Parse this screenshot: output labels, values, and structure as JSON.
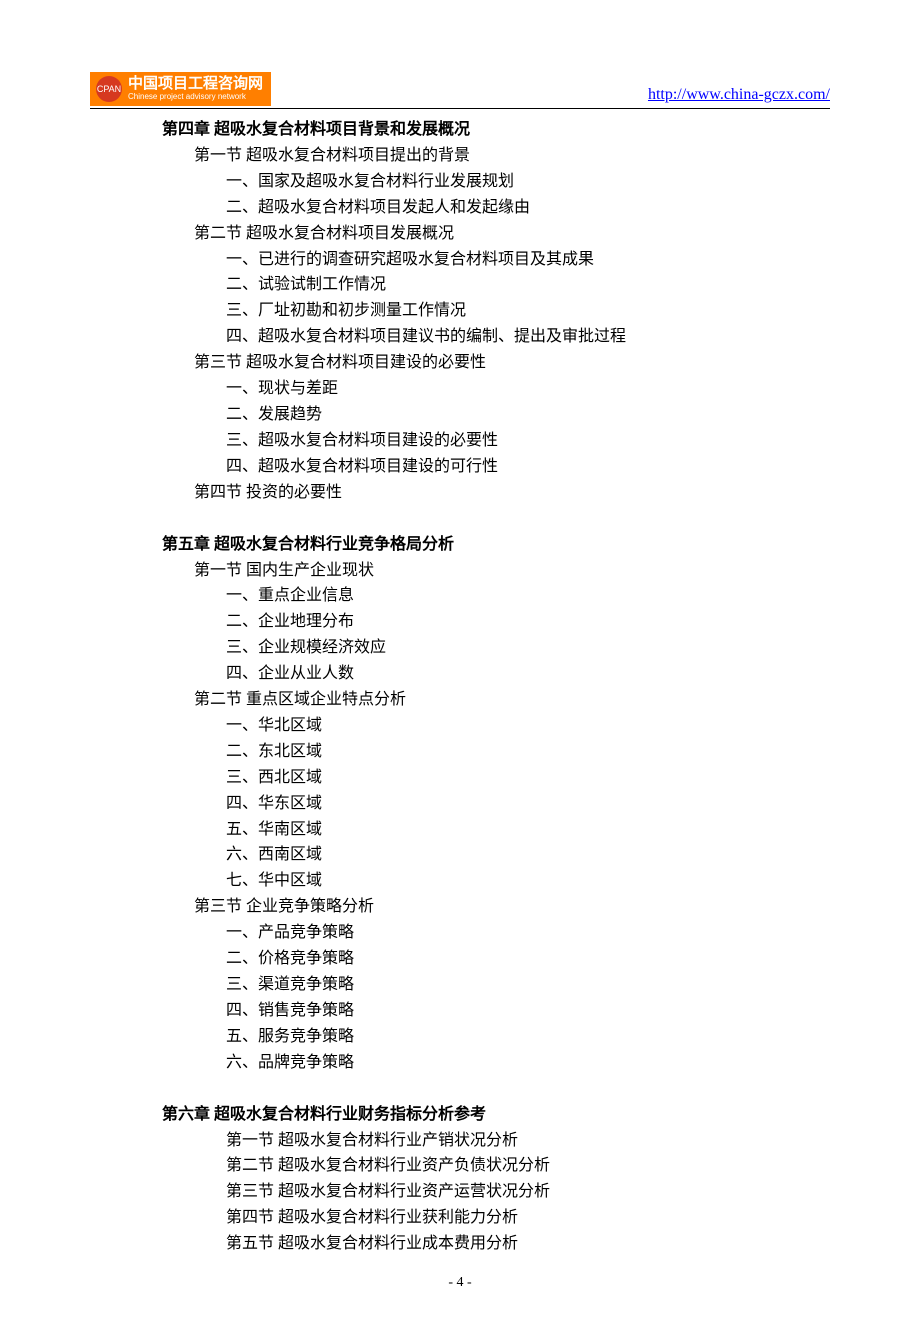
{
  "header": {
    "logo_cn": "中国项目工程咨询网",
    "logo_en": "Chinese project advisory network",
    "logo_badge": "CPAN",
    "url": "http://www.china-gczx.com/"
  },
  "chapter4": {
    "title": "第四章 超吸水复合材料项目背景和发展概况",
    "section1": {
      "title": "第一节 超吸水复合材料项目提出的背景",
      "items": [
        "一、国家及超吸水复合材料行业发展规划",
        "二、超吸水复合材料项目发起人和发起缘由"
      ]
    },
    "section2": {
      "title": "第二节 超吸水复合材料项目发展概况",
      "items": [
        "一、已进行的调查研究超吸水复合材料项目及其成果",
        "二、试验试制工作情况",
        "三、厂址初勘和初步测量工作情况",
        "四、超吸水复合材料项目建议书的编制、提出及审批过程"
      ]
    },
    "section3": {
      "title": "第三节 超吸水复合材料项目建设的必要性",
      "items": [
        "一、现状与差距",
        "二、发展趋势",
        "三、超吸水复合材料项目建设的必要性",
        "四、超吸水复合材料项目建设的可行性"
      ]
    },
    "section4": {
      "title": "第四节  投资的必要性"
    }
  },
  "chapter5": {
    "title": "第五章 超吸水复合材料行业竞争格局分析",
    "section1": {
      "title": "第一节  国内生产企业现状",
      "items": [
        "一、重点企业信息",
        "二、企业地理分布",
        "三、企业规模经济效应",
        "四、企业从业人数"
      ]
    },
    "section2": {
      "title": "第二节  重点区域企业特点分析",
      "items": [
        "一、华北区域",
        "二、东北区域",
        "三、西北区域",
        "四、华东区域",
        "五、华南区域",
        "六、西南区域",
        "七、华中区域"
      ]
    },
    "section3": {
      "title": "第三节  企业竞争策略分析",
      "items": [
        "一、产品竞争策略",
        "二、价格竞争策略",
        "三、渠道竞争策略",
        "四、销售竞争策略",
        "五、服务竞争策略",
        "六、品牌竞争策略"
      ]
    }
  },
  "chapter6": {
    "title": "第六章 超吸水复合材料行业财务指标分析参考",
    "sections": [
      "第一节 超吸水复合材料行业产销状况分析",
      "第二节 超吸水复合材料行业资产负债状况分析",
      "第三节 超吸水复合材料行业资产运营状况分析",
      "第四节 超吸水复合材料行业获利能力分析",
      "第五节 超吸水复合材料行业成本费用分析"
    ]
  },
  "page_number": "- 4 -",
  "colors": {
    "logo_bg": "#ff7f00",
    "logo_circle": "#d63920",
    "link": "#0000ff",
    "text": "#000000",
    "background": "#ffffff"
  }
}
